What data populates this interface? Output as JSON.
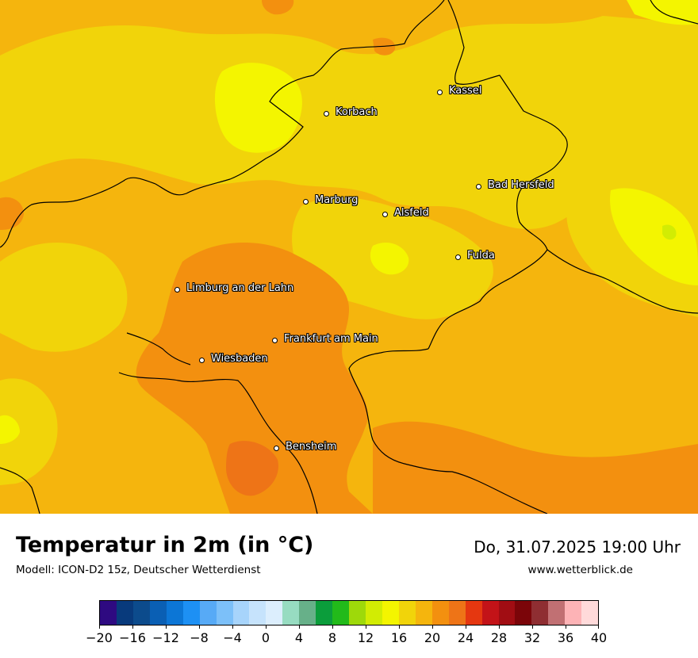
{
  "map": {
    "title": "Temperatur in 2m (in °C)",
    "model": "Modell: ICON-D2 15z, Deutscher Wetterdienst",
    "datetime": "Do, 31.07.2025 19:00 Uhr",
    "website": "www.wetterblick.de",
    "colors": {
      "base": "#f5b50d",
      "yellow": "#f1d40a",
      "lime": "#f4f500",
      "lightgreen": "#d2ec03",
      "orange": "#f3900f",
      "darkorange": "#ee7417",
      "border": "#000000"
    },
    "cities": [
      {
        "name": "Kassel"
      },
      {
        "name": "Korbach"
      },
      {
        "name": "Bad Hersfeld"
      },
      {
        "name": "Marburg"
      },
      {
        "name": "Alsfeld"
      },
      {
        "name": "Fulda"
      },
      {
        "name": "Limburg an der Lahn"
      },
      {
        "name": "Frankfurt am Main"
      },
      {
        "name": "Wiesbaden"
      },
      {
        "name": "Bensheim"
      }
    ]
  },
  "legend": {
    "unit": "°C",
    "colors": [
      "#2e0a81",
      "#083a7c",
      "#0c4b8c",
      "#0a5fb4",
      "#0c76d6",
      "#1d90f4",
      "#57aaf6",
      "#7cc0f9",
      "#a7d4fb",
      "#c6e3fc",
      "#dceefd",
      "#97dcc1",
      "#67b089",
      "#0b9d3b",
      "#22ba1a",
      "#9ed90a",
      "#d2ec03",
      "#f4f500",
      "#f1d40a",
      "#f5b50d",
      "#f3900f",
      "#ee7417",
      "#e53710",
      "#c31318",
      "#a10d13",
      "#7b0509",
      "#8f2e32",
      "#c17073",
      "#fdb3b6",
      "#ffdada"
    ],
    "ticks": [
      "−20",
      "−16",
      "−12",
      "−8",
      "−4",
      "0",
      "4",
      "8",
      "12",
      "16",
      "20",
      "24",
      "28",
      "32",
      "36",
      "40"
    ],
    "min": -20,
    "max": 40
  }
}
